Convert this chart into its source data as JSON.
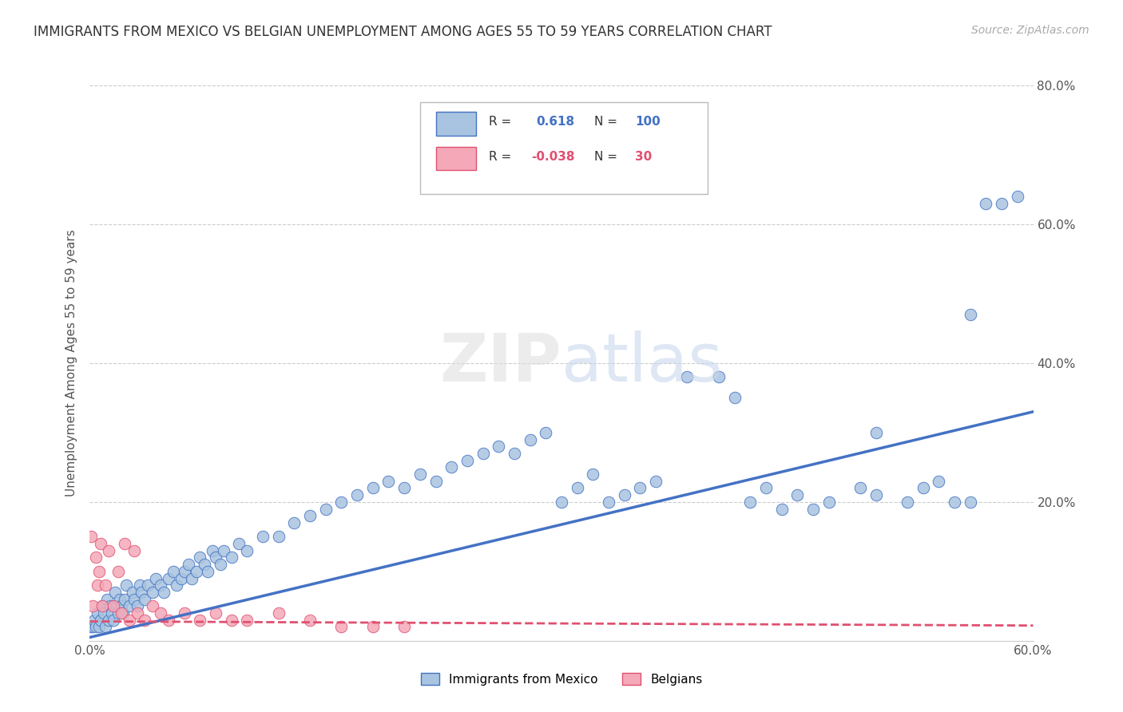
{
  "title": "IMMIGRANTS FROM MEXICO VS BELGIAN UNEMPLOYMENT AMONG AGES 55 TO 59 YEARS CORRELATION CHART",
  "source": "Source: ZipAtlas.com",
  "ylabel_label": "Unemployment Among Ages 55 to 59 years",
  "r_blue": 0.618,
  "n_blue": 100,
  "r_pink": -0.038,
  "n_pink": 30,
  "blue_color": "#a8c4e0",
  "pink_color": "#f4a8b8",
  "blue_line_color": "#4472c4",
  "pink_line_color": "#e05070",
  "xlim": [
    0.0,
    0.6
  ],
  "ylim": [
    0.0,
    0.8
  ],
  "blue_trend_x": [
    0.0,
    0.6
  ],
  "blue_trend_y": [
    0.005,
    0.33
  ],
  "pink_trend_x": [
    0.0,
    0.6
  ],
  "pink_trend_y": [
    0.028,
    0.022
  ],
  "blue_scatter_x": [
    0.001,
    0.002,
    0.003,
    0.004,
    0.005,
    0.006,
    0.007,
    0.008,
    0.009,
    0.01,
    0.011,
    0.012,
    0.013,
    0.014,
    0.015,
    0.016,
    0.017,
    0.018,
    0.019,
    0.02,
    0.021,
    0.022,
    0.023,
    0.025,
    0.027,
    0.028,
    0.03,
    0.032,
    0.033,
    0.035,
    0.037,
    0.04,
    0.042,
    0.045,
    0.047,
    0.05,
    0.053,
    0.055,
    0.058,
    0.06,
    0.063,
    0.065,
    0.068,
    0.07,
    0.073,
    0.075,
    0.078,
    0.08,
    0.083,
    0.085,
    0.09,
    0.095,
    0.1,
    0.11,
    0.12,
    0.13,
    0.14,
    0.15,
    0.16,
    0.17,
    0.18,
    0.19,
    0.2,
    0.21,
    0.22,
    0.23,
    0.24,
    0.25,
    0.26,
    0.27,
    0.28,
    0.29,
    0.3,
    0.31,
    0.32,
    0.33,
    0.34,
    0.35,
    0.36,
    0.38,
    0.4,
    0.41,
    0.42,
    0.43,
    0.44,
    0.45,
    0.46,
    0.47,
    0.49,
    0.5,
    0.52,
    0.54,
    0.55,
    0.56,
    0.57,
    0.58,
    0.59,
    0.56,
    0.53,
    0.5
  ],
  "blue_scatter_y": [
    0.02,
    0.02,
    0.03,
    0.02,
    0.04,
    0.02,
    0.03,
    0.05,
    0.04,
    0.02,
    0.06,
    0.03,
    0.05,
    0.04,
    0.03,
    0.07,
    0.05,
    0.04,
    0.06,
    0.05,
    0.04,
    0.06,
    0.08,
    0.05,
    0.07,
    0.06,
    0.05,
    0.08,
    0.07,
    0.06,
    0.08,
    0.07,
    0.09,
    0.08,
    0.07,
    0.09,
    0.1,
    0.08,
    0.09,
    0.1,
    0.11,
    0.09,
    0.1,
    0.12,
    0.11,
    0.1,
    0.13,
    0.12,
    0.11,
    0.13,
    0.12,
    0.14,
    0.13,
    0.15,
    0.15,
    0.17,
    0.18,
    0.19,
    0.2,
    0.21,
    0.22,
    0.23,
    0.22,
    0.24,
    0.23,
    0.25,
    0.26,
    0.27,
    0.28,
    0.27,
    0.29,
    0.3,
    0.2,
    0.22,
    0.24,
    0.2,
    0.21,
    0.22,
    0.23,
    0.38,
    0.38,
    0.35,
    0.2,
    0.22,
    0.19,
    0.21,
    0.19,
    0.2,
    0.22,
    0.21,
    0.2,
    0.23,
    0.2,
    0.47,
    0.63,
    0.63,
    0.64,
    0.2,
    0.22,
    0.3
  ],
  "pink_scatter_x": [
    0.001,
    0.002,
    0.004,
    0.005,
    0.006,
    0.007,
    0.008,
    0.01,
    0.012,
    0.015,
    0.018,
    0.02,
    0.022,
    0.025,
    0.028,
    0.03,
    0.035,
    0.04,
    0.045,
    0.05,
    0.06,
    0.07,
    0.08,
    0.09,
    0.1,
    0.12,
    0.14,
    0.16,
    0.18,
    0.2
  ],
  "pink_scatter_y": [
    0.15,
    0.05,
    0.12,
    0.08,
    0.1,
    0.14,
    0.05,
    0.08,
    0.13,
    0.05,
    0.1,
    0.04,
    0.14,
    0.03,
    0.13,
    0.04,
    0.03,
    0.05,
    0.04,
    0.03,
    0.04,
    0.03,
    0.04,
    0.03,
    0.03,
    0.04,
    0.03,
    0.02,
    0.02,
    0.02
  ]
}
